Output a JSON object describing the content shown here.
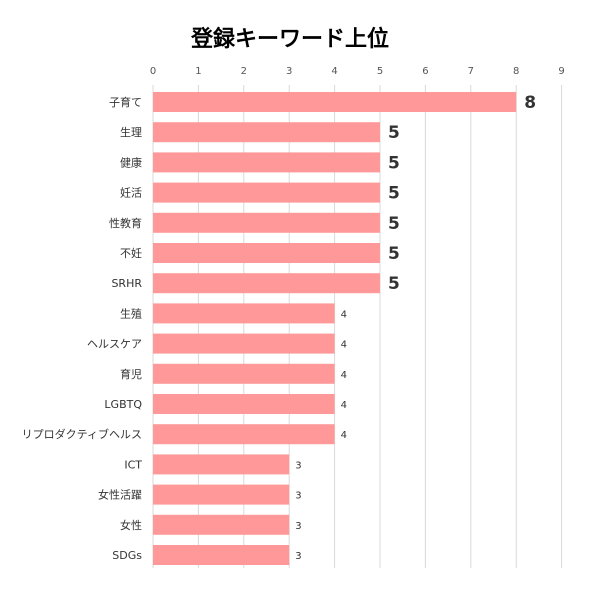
{
  "chart_data": {
    "type": "bar",
    "orientation": "horizontal",
    "title": "登録キーワード上位",
    "xlabel": "",
    "ylabel": "",
    "xlim": [
      0,
      9
    ],
    "ticks": [
      0,
      1,
      2,
      3,
      4,
      5,
      6,
      7,
      8,
      9
    ],
    "grid": true,
    "categories": [
      "子育て",
      "生理",
      "健康",
      "妊活",
      "性教育",
      "不妊",
      "SRHR",
      "生殖",
      "ヘルスケア",
      "育児",
      "LGBTQ",
      "リプロダクティブヘルス",
      "ICT",
      "女性活躍",
      "女性",
      "SDGs"
    ],
    "values": [
      8,
      5,
      5,
      5,
      5,
      5,
      5,
      4,
      4,
      4,
      4,
      4,
      3,
      3,
      3,
      3
    ],
    "bar_color": "#ff9999"
  }
}
